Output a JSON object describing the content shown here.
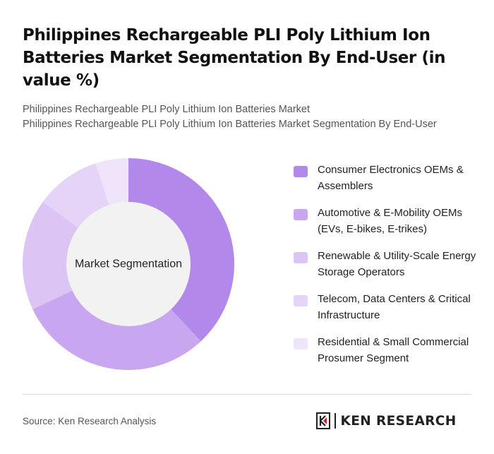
{
  "header": {
    "title": "Philippines Rechargeable PLI Poly Lithium Ion Batteries Market Segmentation By End-User (in value %)",
    "subtitle_line1": "Philippines Rechargeable PLI Poly Lithium Ion Batteries Market",
    "subtitle_line2": "Philippines Rechargeable PLI Poly Lithium Ion Batteries Market Segmentation By End-User"
  },
  "chart_data": {
    "type": "pie",
    "variant": "donut",
    "center_label": "Market Segmentation",
    "categories": [
      "Consumer Electronics OEMs & Assemblers",
      "Automotive & E-Mobility OEMs (EVs, E-bikes, E-trikes)",
      "Renewable & Utility-Scale Energy Storage Operators",
      "Telecom, Data Centers & Critical Infrastructure",
      "Residential & Small Commercial Prosumer Segment"
    ],
    "values": [
      38,
      30,
      17,
      10,
      5
    ],
    "colors": [
      "#b388eb",
      "#c9a6f0",
      "#dcc4f5",
      "#e6d4f8",
      "#efe4fa"
    ],
    "legend_position": "right"
  },
  "footer": {
    "source": "Source: Ken Research Analysis",
    "logo_text": "KEN RESEARCH"
  }
}
